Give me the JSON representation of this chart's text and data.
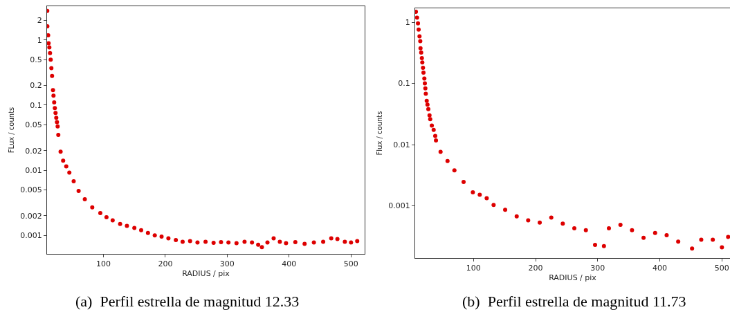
{
  "chart_data": [
    {
      "type": "scatter",
      "xlabel": "RADIUS / pix",
      "ylabel": "FLux / counts",
      "annotations": [
        "(a)  Perfil estrella de magnitud 12.33"
      ],
      "color": "#dd0000",
      "marker": "circle",
      "log": true,
      "xlim": [
        9,
        522
      ],
      "ylim": [
        0.00052,
        3.3
      ],
      "xticks": [
        100,
        200,
        300,
        400,
        500
      ],
      "yticks": [
        0.001,
        0.002,
        0.005,
        0.01,
        0.02,
        0.05,
        0.1,
        0.2,
        0.5,
        1,
        2
      ],
      "x": [
        9.3,
        9.5,
        10.8,
        11.5,
        12.7,
        13.8,
        14.9,
        16,
        17.1,
        18.6,
        19.4,
        20.5,
        21.6,
        22.7,
        23.9,
        25,
        26.1,
        27.2,
        30.9,
        35,
        40,
        45,
        52,
        60,
        70,
        82,
        95,
        105,
        115,
        127,
        138,
        150,
        161,
        172,
        183,
        194,
        205,
        217,
        228,
        240,
        252,
        265,
        278,
        290,
        302,
        315,
        328,
        340,
        350,
        356,
        365,
        375,
        385,
        395,
        410,
        425,
        440,
        455,
        468,
        478,
        490,
        500,
        510
      ],
      "values": [
        2.8,
        1.62,
        1.18,
        0.89,
        0.77,
        0.63,
        0.5,
        0.37,
        0.28,
        0.17,
        0.14,
        0.11,
        0.09,
        0.076,
        0.064,
        0.055,
        0.047,
        0.035,
        0.0193,
        0.014,
        0.0115,
        0.0092,
        0.0068,
        0.0048,
        0.0036,
        0.0027,
        0.0022,
        0.0019,
        0.0017,
        0.0015,
        0.0014,
        0.0013,
        0.0012,
        0.00109,
        0.001,
        0.00096,
        0.0009,
        0.00085,
        0.0008,
        0.00082,
        0.00078,
        0.0008,
        0.00077,
        0.00079,
        0.00078,
        0.00076,
        0.0008,
        0.00078,
        0.00072,
        0.00066,
        0.00078,
        0.0009,
        0.0008,
        0.00076,
        0.00079,
        0.00074,
        0.00078,
        0.0008,
        0.0009,
        0.00088,
        0.0008,
        0.00078,
        0.00082
      ]
    },
    {
      "type": "scatter",
      "xlabel": "RADIUS / pix",
      "ylabel": "Flux / counts",
      "annotations": [
        "(b)  Perfil estrella de magnitud 11.73"
      ],
      "color": "#dd0000",
      "marker": "circle",
      "log": true,
      "xlim": [
        6,
        513
      ],
      "ylim": [
        0.00014,
        1.69
      ],
      "xticks": [
        100,
        200,
        300,
        400,
        500
      ],
      "yticks": [
        0.001,
        0.01,
        0.1,
        1
      ],
      "x": [
        7.2,
        9,
        10.5,
        11.6,
        13,
        14.2,
        14.6,
        15.7,
        16.8,
        17.5,
        18.6,
        19.4,
        20.8,
        21.6,
        22.4,
        23.1,
        24.6,
        25.8,
        27.2,
        29.1,
        30.2,
        32.8,
        35.8,
        38.3,
        39.5,
        46.9,
        58.1,
        69.2,
        84,
        98.9,
        110,
        121.2,
        132.3,
        150.9,
        169.5,
        188,
        206.6,
        225.2,
        243.7,
        262.3,
        280.9,
        295.7,
        310,
        318,
        336.6,
        355.2,
        373.8,
        392.4,
        411,
        429.6,
        451.9,
        466.7,
        485.3,
        500,
        510
      ],
      "values": [
        1.48,
        1.19,
        0.96,
        0.76,
        0.59,
        0.49,
        0.376,
        0.32,
        0.26,
        0.22,
        0.18,
        0.15,
        0.12,
        0.1,
        0.083,
        0.068,
        0.052,
        0.045,
        0.038,
        0.03,
        0.026,
        0.0205,
        0.0174,
        0.0139,
        0.0117,
        0.0076,
        0.0054,
        0.0038,
        0.00245,
        0.00166,
        0.00152,
        0.00133,
        0.00103,
        0.00086,
        0.00067,
        0.00058,
        0.00053,
        0.00064,
        0.00051,
        0.00043,
        0.0004,
        0.00023,
        0.00022,
        0.00043,
        0.00049,
        0.0004,
        0.0003,
        0.00036,
        0.00033,
        0.00026,
        0.0002,
        0.00028,
        0.00028,
        0.00021,
        0.00031
      ]
    }
  ]
}
